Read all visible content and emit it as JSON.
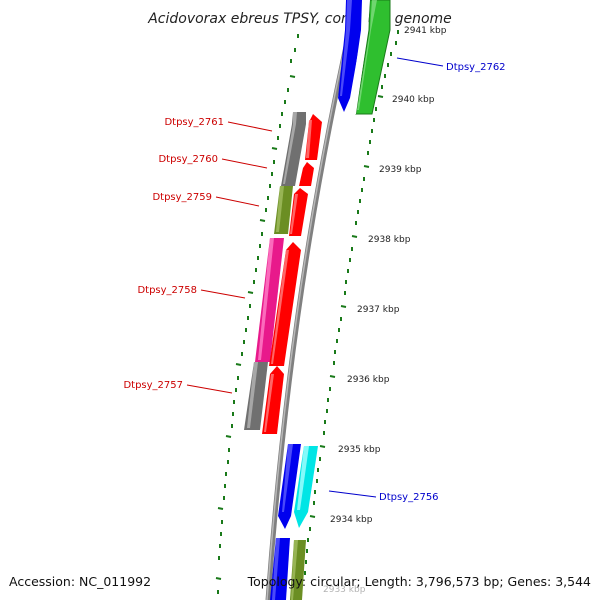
{
  "title": "Acidovorax ebreus TPSY, complete genome",
  "accession": "Accession: NC_011992",
  "topology": "Topology: circular; Length: 3,796,573 bp; Genes: 3,544",
  "colors": {
    "backbone": "#808080",
    "ticks": "#1a7a1a",
    "label_minus": "#cc0000",
    "label_plus": "#0000cc"
  },
  "kbp_labels": [
    "2941 kbp",
    "2940 kbp",
    "2939 kbp",
    "2938 kbp",
    "2937 kbp",
    "2936 kbp",
    "2935 kbp",
    "2934 kbp",
    "2933 kbp"
  ],
  "gene_labels_left": [
    "Dtpsy_2761",
    "Dtpsy_2760",
    "Dtpsy_2759",
    "Dtpsy_2758",
    "Dtpsy_2757"
  ],
  "gene_labels_right": [
    "Dtpsy_2762",
    "Dtpsy_2756"
  ]
}
